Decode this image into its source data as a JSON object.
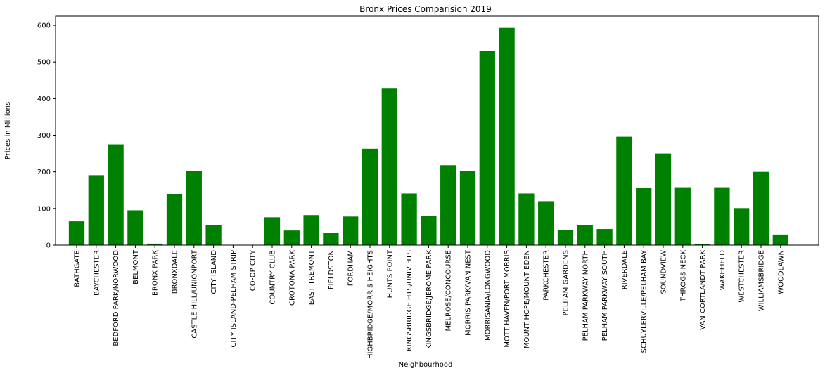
{
  "chart_data": {
    "type": "bar",
    "title": "Bronx Prices Comparision 2019",
    "xlabel": "Neighbourhood",
    "ylabel": "Prices in Millions",
    "ylim": [
      0,
      625
    ],
    "yticks": [
      0,
      100,
      200,
      300,
      400,
      500,
      600
    ],
    "grid": false,
    "bar_color": "#008000",
    "categories": [
      "BATHGATE",
      "BAYCHESTER",
      "BEDFORD PARK/NORWOOD",
      "BELMONT",
      "BRONX PARK",
      "BRONXDALE",
      "CASTLE HILL/UNIONPORT",
      "CITY ISLAND",
      "CITY ISLAND-PELHAM STRIP",
      "CO-OP CITY",
      "COUNTRY CLUB",
      "CROTONA PARK",
      "EAST TREMONT",
      "FIELDSTON",
      "FORDHAM",
      "HIGHBRIDGE/MORRIS HEIGHTS",
      "HUNTS POINT",
      "KINGSBRIDGE HTS/UNIV HTS",
      "KINGSBRIDGE/JEROME PARK",
      "MELROSE/CONCOURSE",
      "MORRIS PARK/VAN NEST",
      "MORRISANIA/LONGWOOD",
      "MOTT HAVEN/PORT MORRIS",
      "MOUNT HOPE/MOUNT EDEN",
      "PARKCHESTER",
      "PELHAM GARDENS",
      "PELHAM PARKWAY NORTH",
      "PELHAM PARKWAY SOUTH",
      "RIVERDALE",
      "SCHUYLERVILLE/PELHAM BAY",
      "SOUNDVIEW",
      "THROGS NECK",
      "VAN CORTLANDT PARK",
      "WAKEFIELD",
      "WESTCHESTER",
      "WILLIAMSBRIDGE",
      "WOODLAWN"
    ],
    "values": [
      65,
      191,
      275,
      95,
      4,
      140,
      202,
      55,
      0,
      0,
      76,
      40,
      82,
      34,
      78,
      263,
      429,
      141,
      80,
      218,
      202,
      530,
      593,
      141,
      120,
      42,
      55,
      44,
      296,
      157,
      250,
      158,
      2,
      158,
      101,
      200,
      29
    ]
  }
}
